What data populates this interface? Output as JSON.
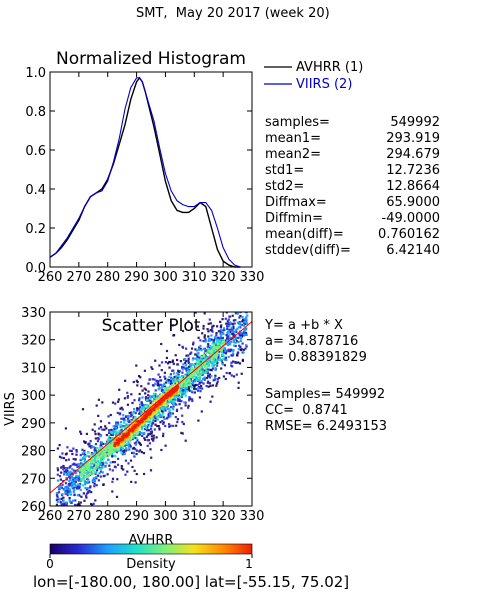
{
  "header": {
    "title": "SMT,  May 20 2017 (week 20)"
  },
  "colors": {
    "avhrr": "#000000",
    "viirs": "#0000cc",
    "fit_line": "#ff0000",
    "density_scale": [
      "#1a0066",
      "#2a2ad4",
      "#1aa0ff",
      "#22e0c8",
      "#7ef07a",
      "#f5e21a",
      "#ff8a00",
      "#f01e00"
    ]
  },
  "histogram": {
    "title": "Normalized Histogram",
    "x_ticks": [
      "260",
      "270",
      "280",
      "290",
      "300",
      "310",
      "320",
      "330"
    ],
    "y_ticks": [
      "0.0",
      "0.2",
      "0.4",
      "0.6",
      "0.8",
      "1.0"
    ],
    "legend": [
      {
        "label": "AVHRR (1)",
        "color": "#000000"
      },
      {
        "label": "VIIRS (2)",
        "color": "#0000cc"
      }
    ]
  },
  "stats": [
    {
      "name": "samples=",
      "value": "549992"
    },
    {
      "name": "mean1=",
      "value": "293.919"
    },
    {
      "name": "mean2=",
      "value": "294.679"
    },
    {
      "name": "std1=",
      "value": "12.7236"
    },
    {
      "name": "std2=",
      "value": "12.8664"
    },
    {
      "name": "Diffmax=",
      "value": "65.9000"
    },
    {
      "name": "Diffmin=",
      "value": "-49.0000"
    },
    {
      "name": "mean(diff)=",
      "value": "0.760162"
    },
    {
      "name": "stddev(diff)=",
      "value": "6.42140"
    }
  ],
  "scatter": {
    "title": "Scatter Plot",
    "xlabel": "AVHRR",
    "ylabel": "VIIRS",
    "x_ticks": [
      "260",
      "270",
      "280",
      "290",
      "300",
      "310",
      "320",
      "330"
    ],
    "y_ticks": [
      "260",
      "270",
      "280",
      "290",
      "300",
      "310",
      "320",
      "330"
    ]
  },
  "fit": {
    "equation": "Y= a +b * X",
    "a_line": "a= 34.878716",
    "b_line": "b= 0.88391829",
    "samples_line": "Samples= 549992",
    "cc_line": "CC=  0.8741",
    "rmse_line": "RMSE= 6.2493153"
  },
  "colorbar": {
    "label": "Density",
    "min_label": "0",
    "max_label": "1"
  },
  "footer": {
    "range": "lon=[-180.00, 180.00] lat=[-55.15, 75.02]"
  },
  "chart_data": [
    {
      "type": "line",
      "title": "Normalized Histogram",
      "xlabel": "",
      "ylabel": "",
      "xlim": [
        260,
        330
      ],
      "ylim": [
        0,
        1
      ],
      "x": [
        260,
        262,
        264,
        266,
        268,
        270,
        272,
        274,
        276,
        278,
        280,
        282,
        284,
        286,
        288,
        290,
        291,
        292,
        293,
        294,
        296,
        298,
        300,
        302,
        304,
        306,
        308,
        310,
        312,
        314,
        316,
        318,
        320,
        322,
        324,
        326
      ],
      "series": [
        {
          "name": "AVHRR (1)",
          "values": [
            0.05,
            0.07,
            0.1,
            0.14,
            0.19,
            0.24,
            0.31,
            0.36,
            0.38,
            0.4,
            0.45,
            0.53,
            0.63,
            0.73,
            0.86,
            0.95,
            0.97,
            0.95,
            0.9,
            0.84,
            0.72,
            0.58,
            0.44,
            0.34,
            0.29,
            0.28,
            0.28,
            0.3,
            0.33,
            0.31,
            0.2,
            0.09,
            0.03,
            0.01,
            0.0,
            0.0
          ]
        },
        {
          "name": "VIIRS (2)",
          "values": [
            0.05,
            0.07,
            0.11,
            0.15,
            0.2,
            0.25,
            0.31,
            0.36,
            0.38,
            0.39,
            0.44,
            0.54,
            0.66,
            0.81,
            0.92,
            0.97,
            0.97,
            0.95,
            0.9,
            0.85,
            0.75,
            0.61,
            0.48,
            0.39,
            0.34,
            0.32,
            0.31,
            0.31,
            0.33,
            0.33,
            0.29,
            0.2,
            0.1,
            0.04,
            0.01,
            0.0
          ]
        }
      ]
    },
    {
      "type": "heatmap",
      "title": "Scatter Plot",
      "xlabel": "AVHRR",
      "ylabel": "VIIRS",
      "xlim": [
        260,
        330
      ],
      "ylim": [
        260,
        330
      ],
      "fit_line": {
        "intercept": 34.878716,
        "slope": 0.88391829
      },
      "density_ridge": {
        "x": [
          265,
          270,
          275,
          280,
          285,
          290,
          295,
          300,
          305,
          310,
          315,
          320,
          325
        ],
        "y": [
          267,
          272,
          276,
          281,
          285,
          290,
          295,
          300,
          304,
          309,
          314,
          319,
          324
        ]
      },
      "colorbar": {
        "label": "Density",
        "range": [
          0,
          1
        ]
      }
    }
  ]
}
